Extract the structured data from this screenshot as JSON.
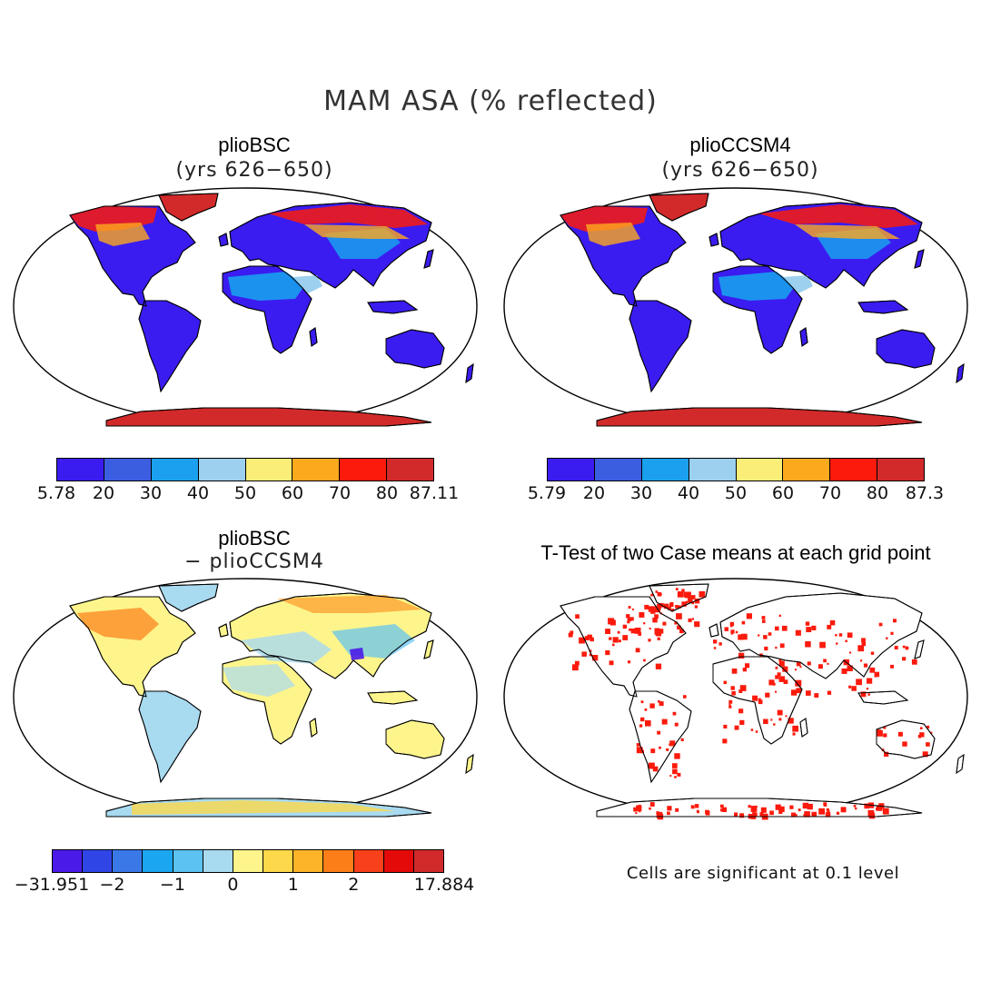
{
  "title": "MAM ASA (% reflected)",
  "panels": [
    {
      "title": "plioBSC",
      "subtitle": "(yrs 626−650)",
      "colorbar": {
        "ticks": [
          "5.78",
          "20",
          "30",
          "40",
          "50",
          "60",
          "70",
          "80",
          "87.11"
        ],
        "colors": [
          "#3a1cf0",
          "#3b5ee0",
          "#1aa0ee",
          "#9cd0ee",
          "#fbee78",
          "#fca91e",
          "#fb1a0c",
          "#d22a2a"
        ]
      }
    },
    {
      "title": "plioCCSM4",
      "subtitle": "(yrs 626−650)",
      "colorbar": {
        "ticks": [
          "5.79",
          "20",
          "30",
          "40",
          "50",
          "60",
          "70",
          "80",
          "87.3"
        ],
        "colors": [
          "#3a1cf0",
          "#3b5ee0",
          "#1aa0ee",
          "#9cd0ee",
          "#fbee78",
          "#fca91e",
          "#fb1a0c",
          "#d22a2a"
        ]
      }
    },
    {
      "title": "plioBSC",
      "subtitle": "− plioCCSM4",
      "colorbar": {
        "ticks": [
          "−31.951",
          "−2",
          "−1",
          "0",
          "1",
          "2",
          "17.884"
        ],
        "colors": [
          "#4a1ae8",
          "#3045e6",
          "#3a78e8",
          "#1aa6f0",
          "#5cc2f2",
          "#a8daf0",
          "#fdf58c",
          "#fdd84a",
          "#fdb428",
          "#fc7e18",
          "#f8401a",
          "#e40a0a",
          "#d22a2a"
        ]
      }
    },
    {
      "title": "T-Test of two Case means at each grid point",
      "note": "Cells are significant at 0.1 level"
    }
  ]
}
